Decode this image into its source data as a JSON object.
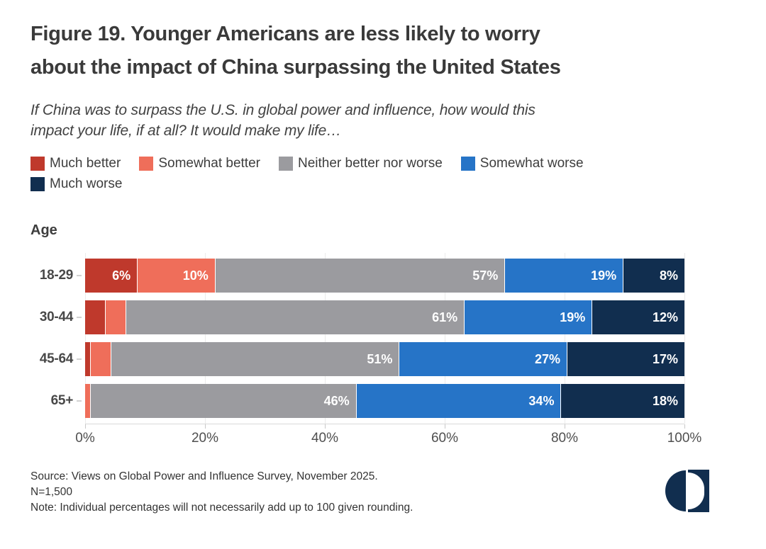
{
  "title": {
    "line1": "Figure 19. Younger Americans are less likely to worry",
    "line2": "about the impact of China surpassing the United States"
  },
  "subtitle": {
    "line1": "If China was to surpass the U.S. in global power and influence, how would this",
    "line2": "impact your life, if at all? It would make my life…"
  },
  "chart_data": {
    "type": "bar",
    "orientation": "horizontal-stacked",
    "title": "Figure 19. Younger Americans are less likely to worry about the impact of China surpassing the United States",
    "subtitle": "If China was to surpass the U.S. in global power and influence, how would this impact your life, if at all? It would make my life…",
    "group_label": "Age",
    "categories": [
      "18-29",
      "30-44",
      "45-64",
      "65+"
    ],
    "series": [
      {
        "name": "Much better",
        "color": "#bf392c",
        "values": [
          6,
          4,
          1,
          0
        ]
      },
      {
        "name": "Somewhat better",
        "color": "#ef6e5a",
        "values": [
          10,
          4,
          4,
          1
        ]
      },
      {
        "name": "Neither better nor worse",
        "color": "#9b9b9f",
        "values": [
          57,
          61,
          51,
          46
        ]
      },
      {
        "name": "Somewhat worse",
        "color": "#2674c7",
        "values": [
          19,
          19,
          27,
          34
        ]
      },
      {
        "name": "Much worse",
        "color": "#112e4f",
        "values": [
          8,
          12,
          17,
          18
        ]
      }
    ],
    "bar_labels": [
      [
        "6%",
        "10%",
        "57%",
        "19%",
        "8%"
      ],
      [
        "",
        "",
        "61%",
        "19%",
        "12%"
      ],
      [
        "",
        "",
        "51%",
        "27%",
        "17%"
      ],
      [
        "",
        "",
        "46%",
        "34%",
        "18%"
      ]
    ],
    "x_ticks": [
      "0%",
      "20%",
      "40%",
      "60%",
      "80%",
      "100%"
    ],
    "x_tick_positions": [
      0,
      20,
      40,
      60,
      80,
      100
    ],
    "xlim": [
      0,
      100
    ],
    "grid": true,
    "legend_position": "top"
  },
  "footer": {
    "source": "Source: Views on Global Power and Influence Survey, November 2025.",
    "n": "N=1,500",
    "note": "Note: Individual percentages will not necessarily add up to 100 given rounding."
  },
  "logo": {
    "color": "#112e4f"
  }
}
